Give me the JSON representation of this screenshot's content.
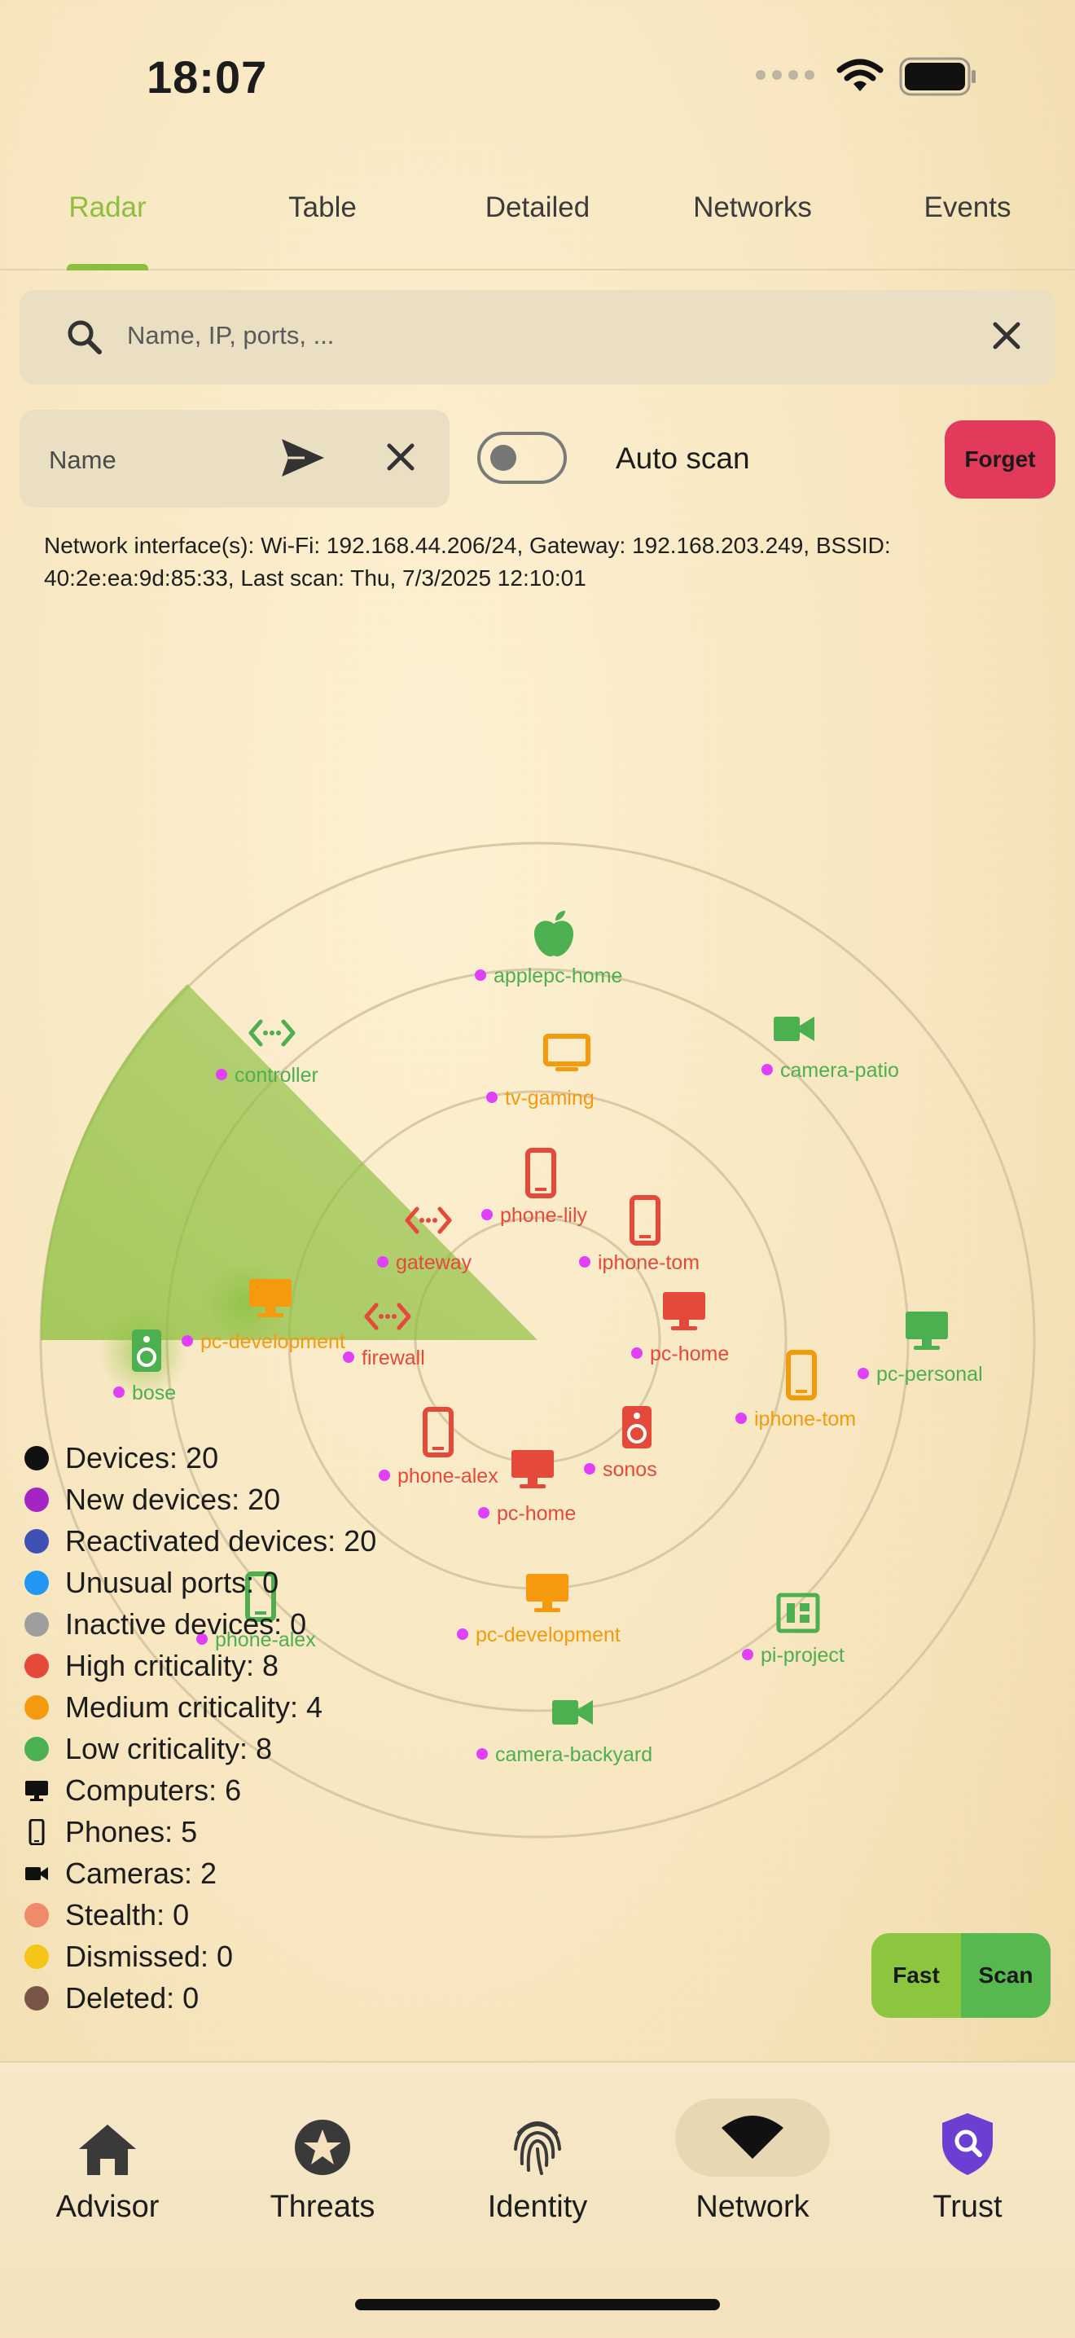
{
  "status_bar": {
    "time": "18:07"
  },
  "tabs": [
    {
      "label": "Radar",
      "active": true
    },
    {
      "label": "Table"
    },
    {
      "label": "Detailed"
    },
    {
      "label": "Networks"
    },
    {
      "label": "Events"
    }
  ],
  "search": {
    "placeholder": "Name, IP, ports, ..."
  },
  "name_field": {
    "placeholder": "Name"
  },
  "auto_scan": {
    "label": "Auto scan",
    "enabled": false
  },
  "forget_button": "Forget",
  "network_info": "Network interface(s): Wi-Fi: 192.168.44.206/24, Gateway: 192.168.203.249, BSSID: 40:2e:ea:9d:85:33, Last scan: Thu, 7/3/2025 12:10:01",
  "colors": {
    "accent": "#8cbf3f",
    "high": "#e5493a",
    "medium": "#f59a0c",
    "low": "#4caf50",
    "new": "#a424c4",
    "device_dot": "#e040fb",
    "forget": "#e23a5a",
    "shield": "#6b3fd2"
  },
  "devices": [
    {
      "name": "applepc-home",
      "type": "apple",
      "criticality": "low"
    },
    {
      "name": "controller",
      "type": "router",
      "criticality": "low"
    },
    {
      "name": "camera-patio",
      "type": "camera",
      "criticality": "low"
    },
    {
      "name": "tv-gaming",
      "type": "tv",
      "criticality": "medium"
    },
    {
      "name": "phone-lily",
      "type": "phone",
      "criticality": "high"
    },
    {
      "name": "iphone-tom",
      "type": "phone",
      "criticality": "high"
    },
    {
      "name": "gateway",
      "type": "router",
      "criticality": "high"
    },
    {
      "name": "firewall",
      "type": "router",
      "criticality": "high"
    },
    {
      "name": "pc-home",
      "type": "computer",
      "criticality": "high"
    },
    {
      "name": "pc-development",
      "type": "computer",
      "criticality": "medium"
    },
    {
      "name": "bose",
      "type": "speaker",
      "criticality": "low"
    },
    {
      "name": "pc-personal",
      "type": "computer",
      "criticality": "low"
    },
    {
      "name": "iphone-tom",
      "type": "phone",
      "criticality": "medium"
    },
    {
      "name": "phone-alex",
      "type": "phone",
      "criticality": "high"
    },
    {
      "name": "sonos",
      "type": "speaker",
      "criticality": "high"
    },
    {
      "name": "pc-home",
      "type": "computer",
      "criticality": "high"
    },
    {
      "name": "phone-alex",
      "type": "phone",
      "criticality": "low"
    },
    {
      "name": "pc-development",
      "type": "computer",
      "criticality": "medium"
    },
    {
      "name": "pi-project",
      "type": "board",
      "criticality": "low"
    },
    {
      "name": "camera-backyard",
      "type": "camera",
      "criticality": "low"
    }
  ],
  "legend": [
    {
      "label": "Devices: 20",
      "color": "#111111"
    },
    {
      "label": "New devices: 20",
      "color": "#a424c4"
    },
    {
      "label": "Reactivated devices: 20",
      "color": "#3f51b5"
    },
    {
      "label": "Unusual ports: 0",
      "color": "#2196f3"
    },
    {
      "label": "Inactive devices: 0",
      "color": "#9e9e9e"
    },
    {
      "label": "High criticality: 8",
      "color": "#e5493a"
    },
    {
      "label": "Medium criticality: 4",
      "color": "#f59a0c"
    },
    {
      "label": "Low criticality: 8",
      "color": "#4caf50"
    },
    {
      "label": "Computers: 6",
      "icon": "computer-icon"
    },
    {
      "label": "Phones: 5",
      "icon": "phone-icon"
    },
    {
      "label": "Cameras: 2",
      "icon": "camera-icon"
    },
    {
      "label": "Stealth: 0",
      "color": "#ef8a6a"
    },
    {
      "label": "Dismissed: 0",
      "color": "#f5c518"
    },
    {
      "label": "Deleted: 0",
      "color": "#795548"
    }
  ],
  "fast_label": "Fast",
  "scan_label": "Scan",
  "bottom_nav": [
    {
      "label": "Advisor",
      "icon": "home-icon"
    },
    {
      "label": "Threats",
      "icon": "star-badge-icon"
    },
    {
      "label": "Identity",
      "icon": "fingerprint-icon"
    },
    {
      "label": "Network",
      "icon": "wifi-icon",
      "active": true
    },
    {
      "label": "Trust",
      "icon": "shield-search-icon"
    }
  ]
}
